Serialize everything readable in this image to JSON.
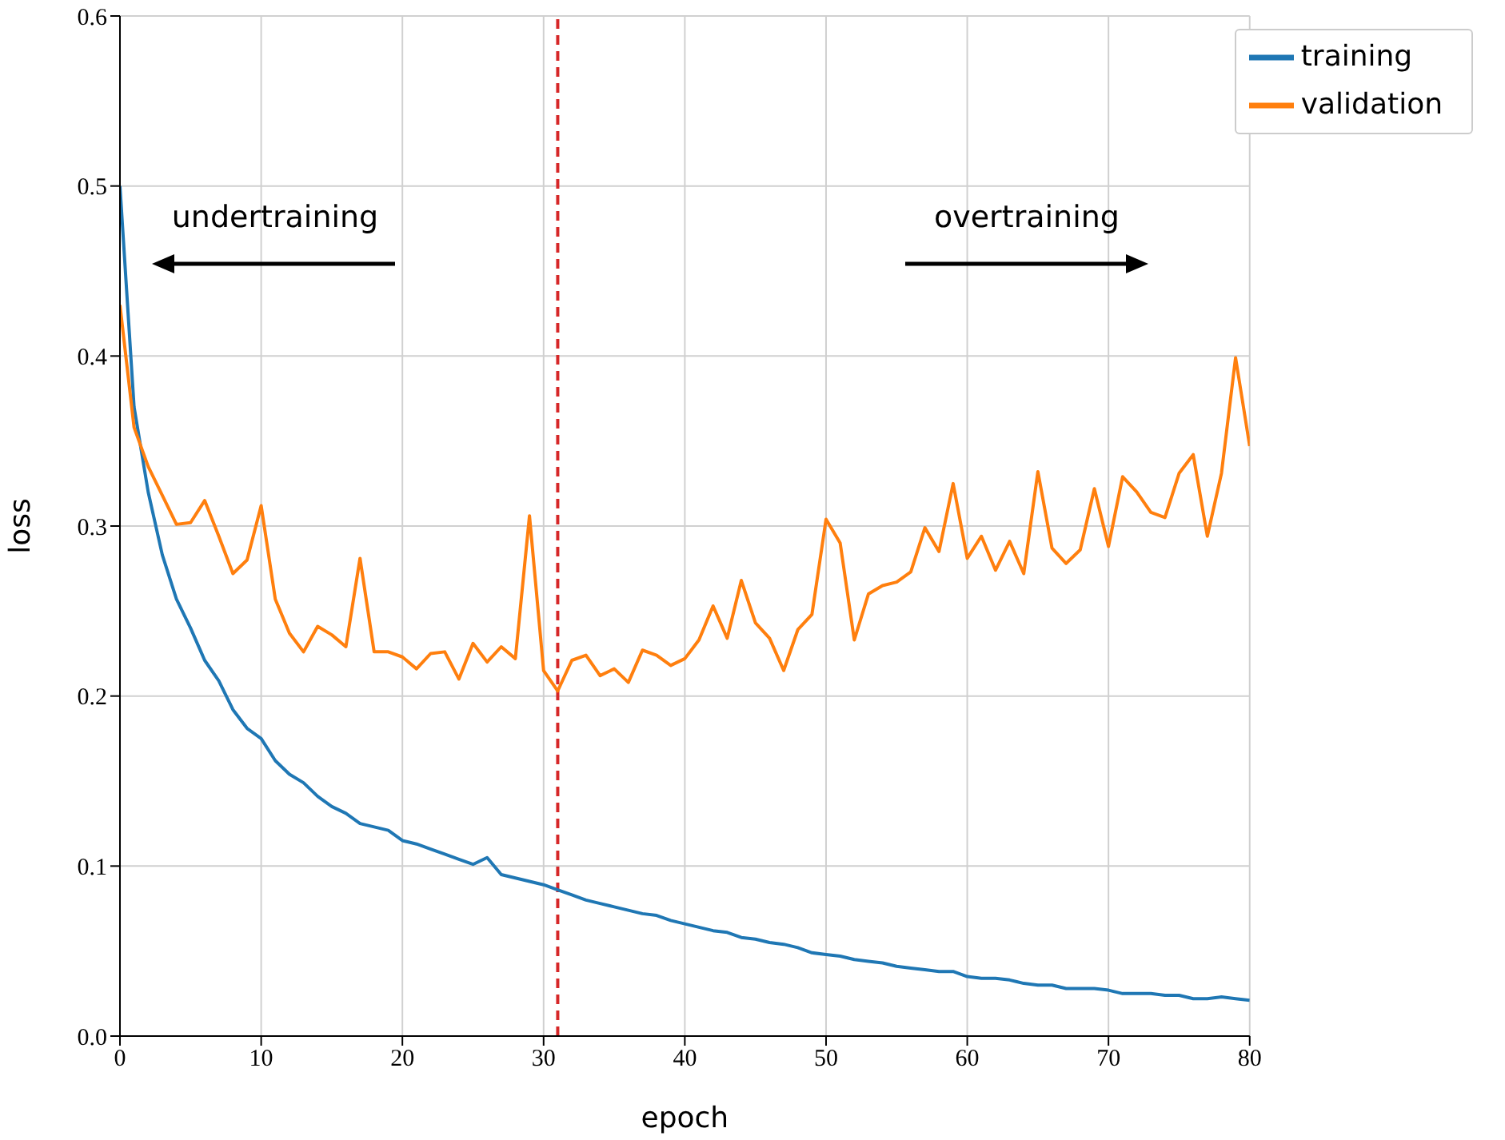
{
  "chart_data": {
    "type": "line",
    "xlabel": "epoch",
    "ylabel": "loss",
    "x": [
      0,
      1,
      2,
      3,
      4,
      5,
      6,
      7,
      8,
      9,
      10,
      11,
      12,
      13,
      14,
      15,
      16,
      17,
      18,
      19,
      20,
      21,
      22,
      23,
      24,
      25,
      26,
      27,
      28,
      29,
      30,
      31,
      32,
      33,
      34,
      35,
      36,
      37,
      38,
      39,
      40,
      41,
      42,
      43,
      44,
      45,
      46,
      47,
      48,
      49,
      50,
      51,
      52,
      53,
      54,
      55,
      56,
      57,
      58,
      59,
      60,
      61,
      62,
      63,
      64,
      65,
      66,
      67,
      68,
      69,
      70,
      71,
      72,
      73,
      74,
      75,
      76,
      77,
      78,
      79,
      80
    ],
    "series": [
      {
        "name": "training",
        "color": "#1f77b4",
        "values": [
          0.5,
          0.37,
          0.32,
          0.283,
          0.257,
          0.24,
          0.221,
          0.209,
          0.192,
          0.181,
          0.175,
          0.162,
          0.154,
          0.149,
          0.141,
          0.135,
          0.131,
          0.125,
          0.123,
          0.121,
          0.115,
          0.113,
          0.11,
          0.107,
          0.104,
          0.101,
          0.105,
          0.095,
          0.093,
          0.091,
          0.089,
          0.086,
          0.083,
          0.08,
          0.078,
          0.076,
          0.074,
          0.072,
          0.071,
          0.068,
          0.066,
          0.064,
          0.062,
          0.061,
          0.058,
          0.057,
          0.055,
          0.054,
          0.052,
          0.049,
          0.048,
          0.047,
          0.045,
          0.044,
          0.043,
          0.041,
          0.04,
          0.039,
          0.038,
          0.038,
          0.035,
          0.034,
          0.034,
          0.033,
          0.031,
          0.03,
          0.03,
          0.028,
          0.028,
          0.028,
          0.027,
          0.025,
          0.025,
          0.025,
          0.024,
          0.024,
          0.022,
          0.022,
          0.023,
          0.022,
          0.021
        ]
      },
      {
        "name": "validation",
        "color": "#ff7f0e",
        "values": [
          0.43,
          0.358,
          0.335,
          0.318,
          0.301,
          0.302,
          0.315,
          0.294,
          0.272,
          0.28,
          0.312,
          0.257,
          0.237,
          0.226,
          0.241,
          0.236,
          0.229,
          0.281,
          0.226,
          0.226,
          0.223,
          0.216,
          0.225,
          0.226,
          0.21,
          0.231,
          0.22,
          0.229,
          0.222,
          0.306,
          0.215,
          0.203,
          0.221,
          0.224,
          0.212,
          0.216,
          0.208,
          0.227,
          0.224,
          0.218,
          0.222,
          0.233,
          0.253,
          0.234,
          0.268,
          0.243,
          0.234,
          0.215,
          0.239,
          0.248,
          0.304,
          0.29,
          0.233,
          0.26,
          0.265,
          0.267,
          0.273,
          0.299,
          0.285,
          0.325,
          0.281,
          0.294,
          0.274,
          0.291,
          0.272,
          0.332,
          0.287,
          0.278,
          0.286,
          0.322,
          0.288,
          0.329,
          0.32,
          0.308,
          0.305,
          0.331,
          0.342,
          0.294,
          0.331,
          0.399,
          0.347
        ]
      }
    ],
    "xlim": [
      0,
      80
    ],
    "xticks": [
      0,
      10,
      20,
      30,
      40,
      50,
      60,
      70,
      80
    ],
    "ylim": [
      0,
      0.6
    ],
    "yticks": [
      {
        "value": 0,
        "label": "0.0"
      },
      {
        "value": 0.1,
        "label": "0.1"
      },
      {
        "value": 0.2,
        "label": "0.2"
      },
      {
        "value": 0.3,
        "label": "0.3"
      },
      {
        "value": 0.4,
        "label": "0.4"
      },
      {
        "value": 0.5,
        "label": "0.5"
      },
      {
        "value": 0.6,
        "label": "0.6"
      }
    ],
    "ref_lines": [
      {
        "axis": "x",
        "value": 31,
        "color": "#d62728",
        "line_style": "dashed"
      }
    ],
    "annotations": [
      "undertraining",
      "overtraining"
    ],
    "grid": true,
    "legend": "top right",
    "line_style": "solid"
  }
}
